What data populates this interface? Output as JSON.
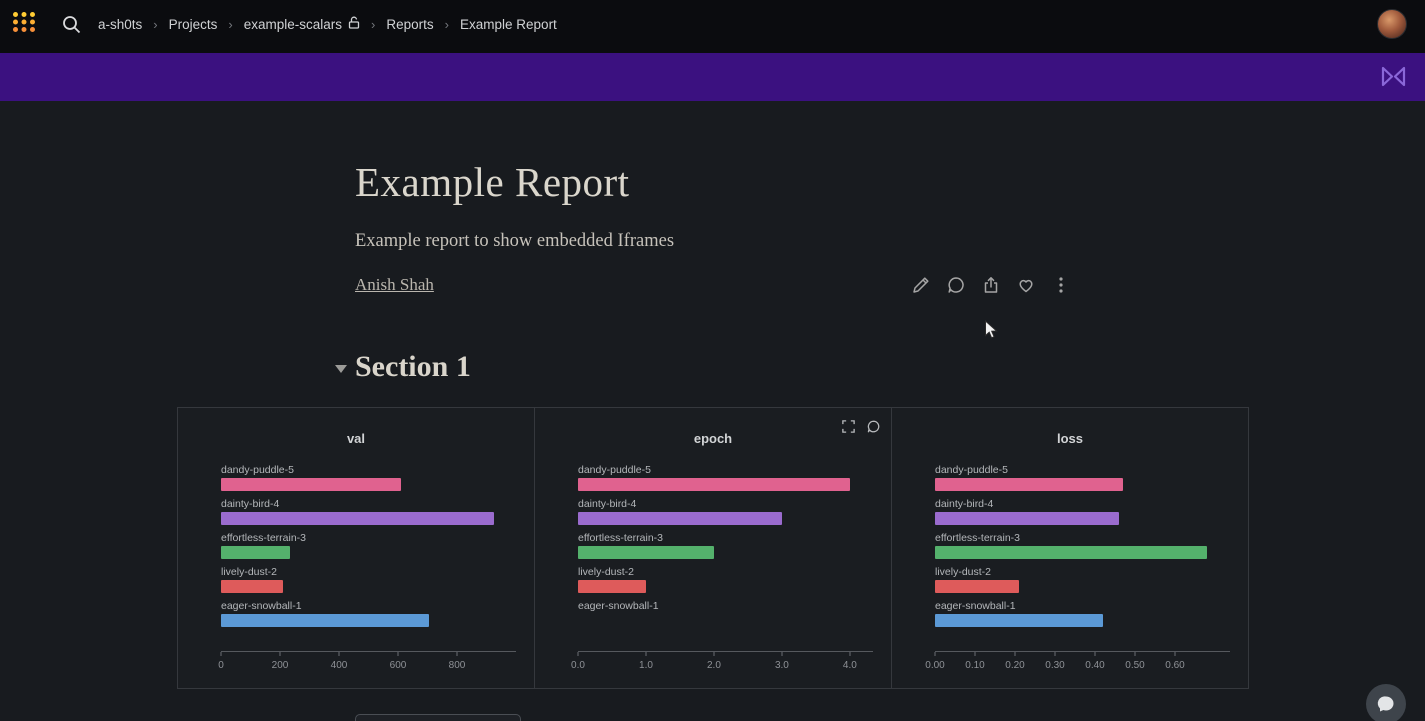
{
  "topbar": {
    "breadcrumb": [
      {
        "label": "a-sh0ts"
      },
      {
        "label": "Projects"
      },
      {
        "label": "example-scalars",
        "icon": "lock-open-icon"
      },
      {
        "label": "Reports"
      },
      {
        "label": "Example Report"
      }
    ],
    "icons": [
      "wandb-dots-logo",
      "search-icon",
      "user-avatar"
    ]
  },
  "banner": {
    "color": "#3b1180",
    "icon": "wandb-bowtie-logo"
  },
  "report": {
    "title": "Example Report",
    "subtitle": "Example report to show embedded Iframes",
    "author": "Anish Shah",
    "actions": [
      "edit-pencil-icon",
      "comment-icon",
      "share-icon",
      "heart-icon",
      "kebab-menu-icon"
    ]
  },
  "section": {
    "title": "Section 1"
  },
  "run_colors": [
    "#e0628f",
    "#9a6bce",
    "#54b16c",
    "#de5b5b",
    "#5b99d6"
  ],
  "chart_data": [
    {
      "type": "bar",
      "orientation": "horizontal",
      "title": "val",
      "categories": [
        "dandy-puddle-5",
        "dainty-bird-4",
        "effortless-terrain-3",
        "lively-dust-2",
        "eager-snowball-1"
      ],
      "values": [
        610,
        925,
        235,
        210,
        705
      ],
      "xticks": {
        "labels": [
          "0",
          "200",
          "400",
          "600",
          "800"
        ],
        "values": [
          0,
          200,
          400,
          600,
          800
        ]
      },
      "xmax": 1000,
      "legend": "none",
      "grid": false
    },
    {
      "type": "bar",
      "orientation": "horizontal",
      "title": "epoch",
      "categories": [
        "dandy-puddle-5",
        "dainty-bird-4",
        "effortless-terrain-3",
        "lively-dust-2",
        "eager-snowball-1"
      ],
      "values": [
        4.0,
        3.0,
        2.0,
        1.0,
        0.0
      ],
      "xticks": {
        "labels": [
          "0.0",
          "1.0",
          "2.0",
          "3.0",
          "4.0"
        ],
        "values": [
          0,
          1,
          2,
          3,
          4
        ]
      },
      "xmax": 4.34,
      "legend": "none",
      "grid": false
    },
    {
      "type": "bar",
      "orientation": "horizontal",
      "title": "loss",
      "categories": [
        "dandy-puddle-5",
        "dainty-bird-4",
        "effortless-terrain-3",
        "lively-dust-2",
        "eager-snowball-1"
      ],
      "values": [
        0.47,
        0.46,
        0.68,
        0.21,
        0.42
      ],
      "xticks": {
        "labels": [
          "0.00",
          "0.10",
          "0.20",
          "0.30",
          "0.40",
          "0.50",
          "0.60"
        ],
        "values": [
          0.0,
          0.1,
          0.2,
          0.3,
          0.4,
          0.5,
          0.6
        ]
      },
      "xmax": 0.7375,
      "legend": "none",
      "grid": false
    }
  ],
  "panel_hover_icons": [
    "fullscreen-expand-icon",
    "comment-icon"
  ],
  "chat": {
    "icon": "chat-bubble-icon"
  }
}
